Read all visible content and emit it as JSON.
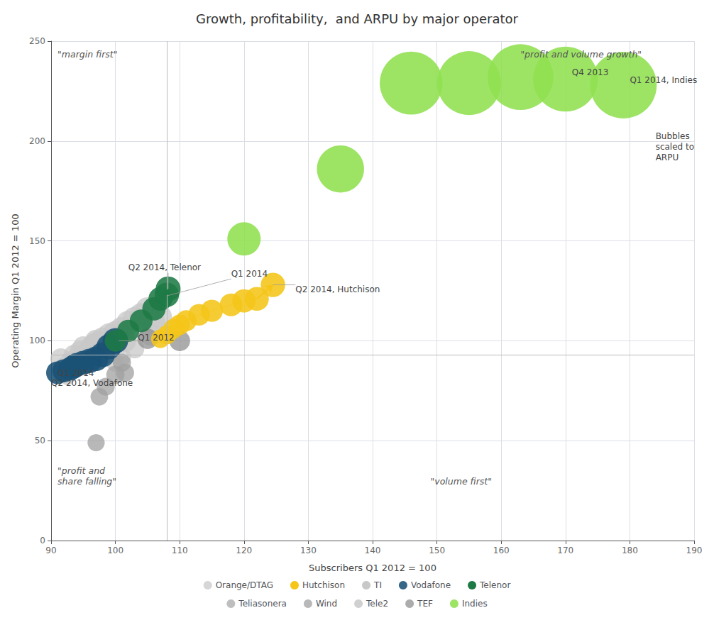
{
  "chart_data": {
    "type": "scatter",
    "title": "Growth, profitability,  and ARPU by major operator",
    "xlabel": "Subscribers Q1 2012 = 100",
    "ylabel": "Operating Margin Q1 2012 = 100",
    "xlim": [
      90,
      190
    ],
    "ylim": [
      0,
      250
    ],
    "xticks": [
      90,
      100,
      110,
      120,
      130,
      140,
      150,
      160,
      170,
      180,
      190
    ],
    "yticks": [
      0,
      50,
      100,
      150,
      200,
      250
    ],
    "grid": true,
    "legend": "bottom",
    "hline_y": 93,
    "vline_x": 108,
    "series": [
      {
        "name": "Orange/DTAG",
        "color": "#c8c8c8",
        "x": [
          91.5,
          92,
          93,
          93.5,
          94.5,
          95,
          96,
          96.5,
          97,
          98,
          99,
          99.5,
          100,
          101,
          102,
          103,
          104,
          105,
          105.5,
          106,
          107,
          92.5,
          100,
          101,
          103,
          99,
          97,
          98.5,
          101.5
        ],
        "values": [
          91,
          87,
          90,
          93,
          95,
          97,
          96,
          98,
          100,
          101,
          103,
          100,
          104,
          106,
          109,
          111,
          113,
          116,
          103,
          109,
          112,
          82,
          89,
          92,
          96,
          94,
          99,
          97,
          100
        ],
        "sizes": [
          350,
          280,
          300,
          320,
          340,
          360,
          370,
          380,
          400,
          420,
          430,
          440,
          450,
          460,
          470,
          460,
          450,
          440,
          380,
          420,
          430,
          220,
          260,
          280,
          300,
          310,
          390,
          380,
          400
        ]
      },
      {
        "name": "Hutchison",
        "color": "#f5c518",
        "line_style": "dotted",
        "x": [
          107,
          108,
          109,
          110,
          111,
          113,
          115,
          118,
          120,
          122,
          124.5
        ],
        "values": [
          101,
          103,
          106,
          108,
          110,
          113,
          115,
          118,
          120,
          121,
          128
        ],
        "sizes": [
          280,
          300,
          320,
          340,
          360,
          380,
          400,
          420,
          440,
          460,
          480
        ]
      },
      {
        "name": "TI",
        "color": "#b5b5b5",
        "x": [
          100,
          100.5
        ],
        "values": [
          100,
          101
        ],
        "sizes": [
          300,
          310
        ]
      },
      {
        "name": "Vodafone",
        "color": "#1a5276",
        "x": [
          91,
          92,
          93,
          93.5,
          94,
          95,
          96,
          97,
          98,
          99,
          100
        ],
        "values": [
          84,
          85,
          86,
          87,
          88,
          89,
          90,
          91,
          93,
          97,
          100
        ],
        "sizes": [
          420,
          430,
          440,
          450,
          460,
          470,
          480,
          490,
          500,
          510,
          520
        ]
      },
      {
        "name": "Telenor",
        "color": "#1e7a45",
        "line_style": "dotted",
        "x": [
          100,
          102,
          104,
          106,
          107,
          108,
          108.2
        ],
        "values": [
          100,
          105,
          110,
          116,
          121,
          123,
          126
        ],
        "sizes": [
          380,
          400,
          420,
          440,
          460,
          480,
          500
        ]
      },
      {
        "name": "Teliasonera",
        "color": "#a8a8a8",
        "x": [
          99,
          99.5,
          100
        ],
        "values": [
          98,
          99,
          100
        ],
        "sizes": [
          350,
          360,
          370
        ]
      },
      {
        "name": "Wind",
        "color": "#a0a0a0",
        "x": [
          97,
          97.5,
          98.5,
          100,
          101,
          101.5
        ],
        "values": [
          49,
          72,
          77,
          83,
          89,
          84
        ],
        "sizes": [
          240,
          250,
          260,
          270,
          270,
          265
        ]
      },
      {
        "name": "Tele2",
        "color": "#c0c0c0",
        "x": [
          100,
          100.5
        ],
        "values": [
          99,
          100
        ],
        "sizes": [
          310,
          320
        ]
      },
      {
        "name": "TEF",
        "color": "#909090",
        "x": [
          100,
          105,
          110
        ],
        "values": [
          100,
          101,
          100
        ],
        "sizes": [
          330,
          340,
          350
        ]
      },
      {
        "name": "Indies",
        "color": "#90e050",
        "x": [
          120,
          135,
          146,
          155,
          163,
          170,
          179
        ],
        "values": [
          151,
          186,
          229,
          229,
          232,
          231,
          228
        ],
        "sizes": [
          900,
          1800,
          3200,
          3300,
          3500,
          3400,
          3600
        ]
      }
    ],
    "annotations": [
      {
        "text": "Q2 2014, Telenor",
        "x": 102,
        "y": 134,
        "target_x": 108.2,
        "target_y": 126
      },
      {
        "text": "Q1 2014",
        "x": 118,
        "y": 131,
        "target_x": 108.0,
        "target_y": 122.5
      },
      {
        "text": "Q2 2014, Hutchison",
        "x": 128,
        "y": 123,
        "target_x": 124.5,
        "target_y": 128
      },
      {
        "text": "Q1 2012",
        "x": 103.5,
        "y": 99,
        "target_x": 100.5,
        "target_y": 100
      },
      {
        "text": "Q1 2014",
        "x": 91,
        "y": 81,
        "target_x": 91.5,
        "target_y": 85.5
      },
      {
        "text": "Q2 2014, Vodafone",
        "x": 90,
        "y": 76,
        "target_x": 99.5,
        "target_y": 79
      },
      {
        "text": "Q4 2013",
        "x": 171,
        "y": 237
      },
      {
        "text": "Q1 2014, Indies",
        "x": 180,
        "y": 233
      },
      {
        "text": "Bubbles\nscaled to\nARPU",
        "x": 184,
        "y": 205
      }
    ],
    "quadrant_labels": [
      {
        "text": "\"margin first\"",
        "x": 91,
        "y": 246
      },
      {
        "text": "\"profit and volume growth\"",
        "x": 163,
        "y": 246
      },
      {
        "text": "\"profit and\nshare falling\"",
        "x": 91,
        "y": 27
      },
      {
        "text": "\"volume first\"",
        "x": 149,
        "y": 27
      }
    ]
  }
}
